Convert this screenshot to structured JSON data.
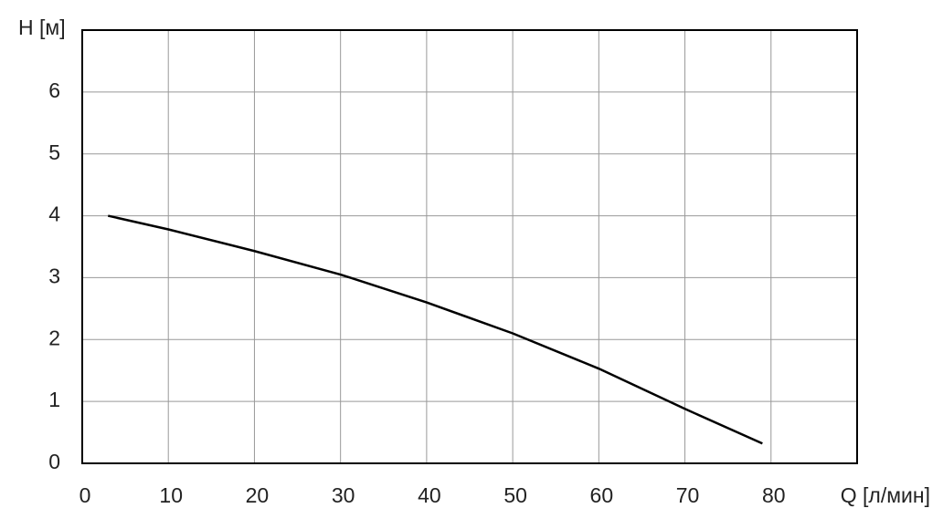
{
  "chart_data": {
    "type": "line",
    "y_label": "H [м]",
    "x_label": "Q [л/мин]",
    "x": [
      3,
      10,
      20,
      30,
      40,
      50,
      60,
      70,
      79
    ],
    "series": [
      {
        "color": "#000000",
        "values": [
          4.0,
          3.78,
          3.43,
          3.05,
          2.6,
          2.1,
          1.53,
          0.88,
          0.32
        ]
      }
    ],
    "xlim": [
      0,
      90
    ],
    "xticks": [
      0,
      10,
      20,
      30,
      40,
      50,
      60,
      70,
      80
    ],
    "ylim": [
      0,
      7
    ],
    "yticks": [
      0,
      1,
      2,
      3,
      4,
      5,
      6
    ],
    "grid": true
  }
}
